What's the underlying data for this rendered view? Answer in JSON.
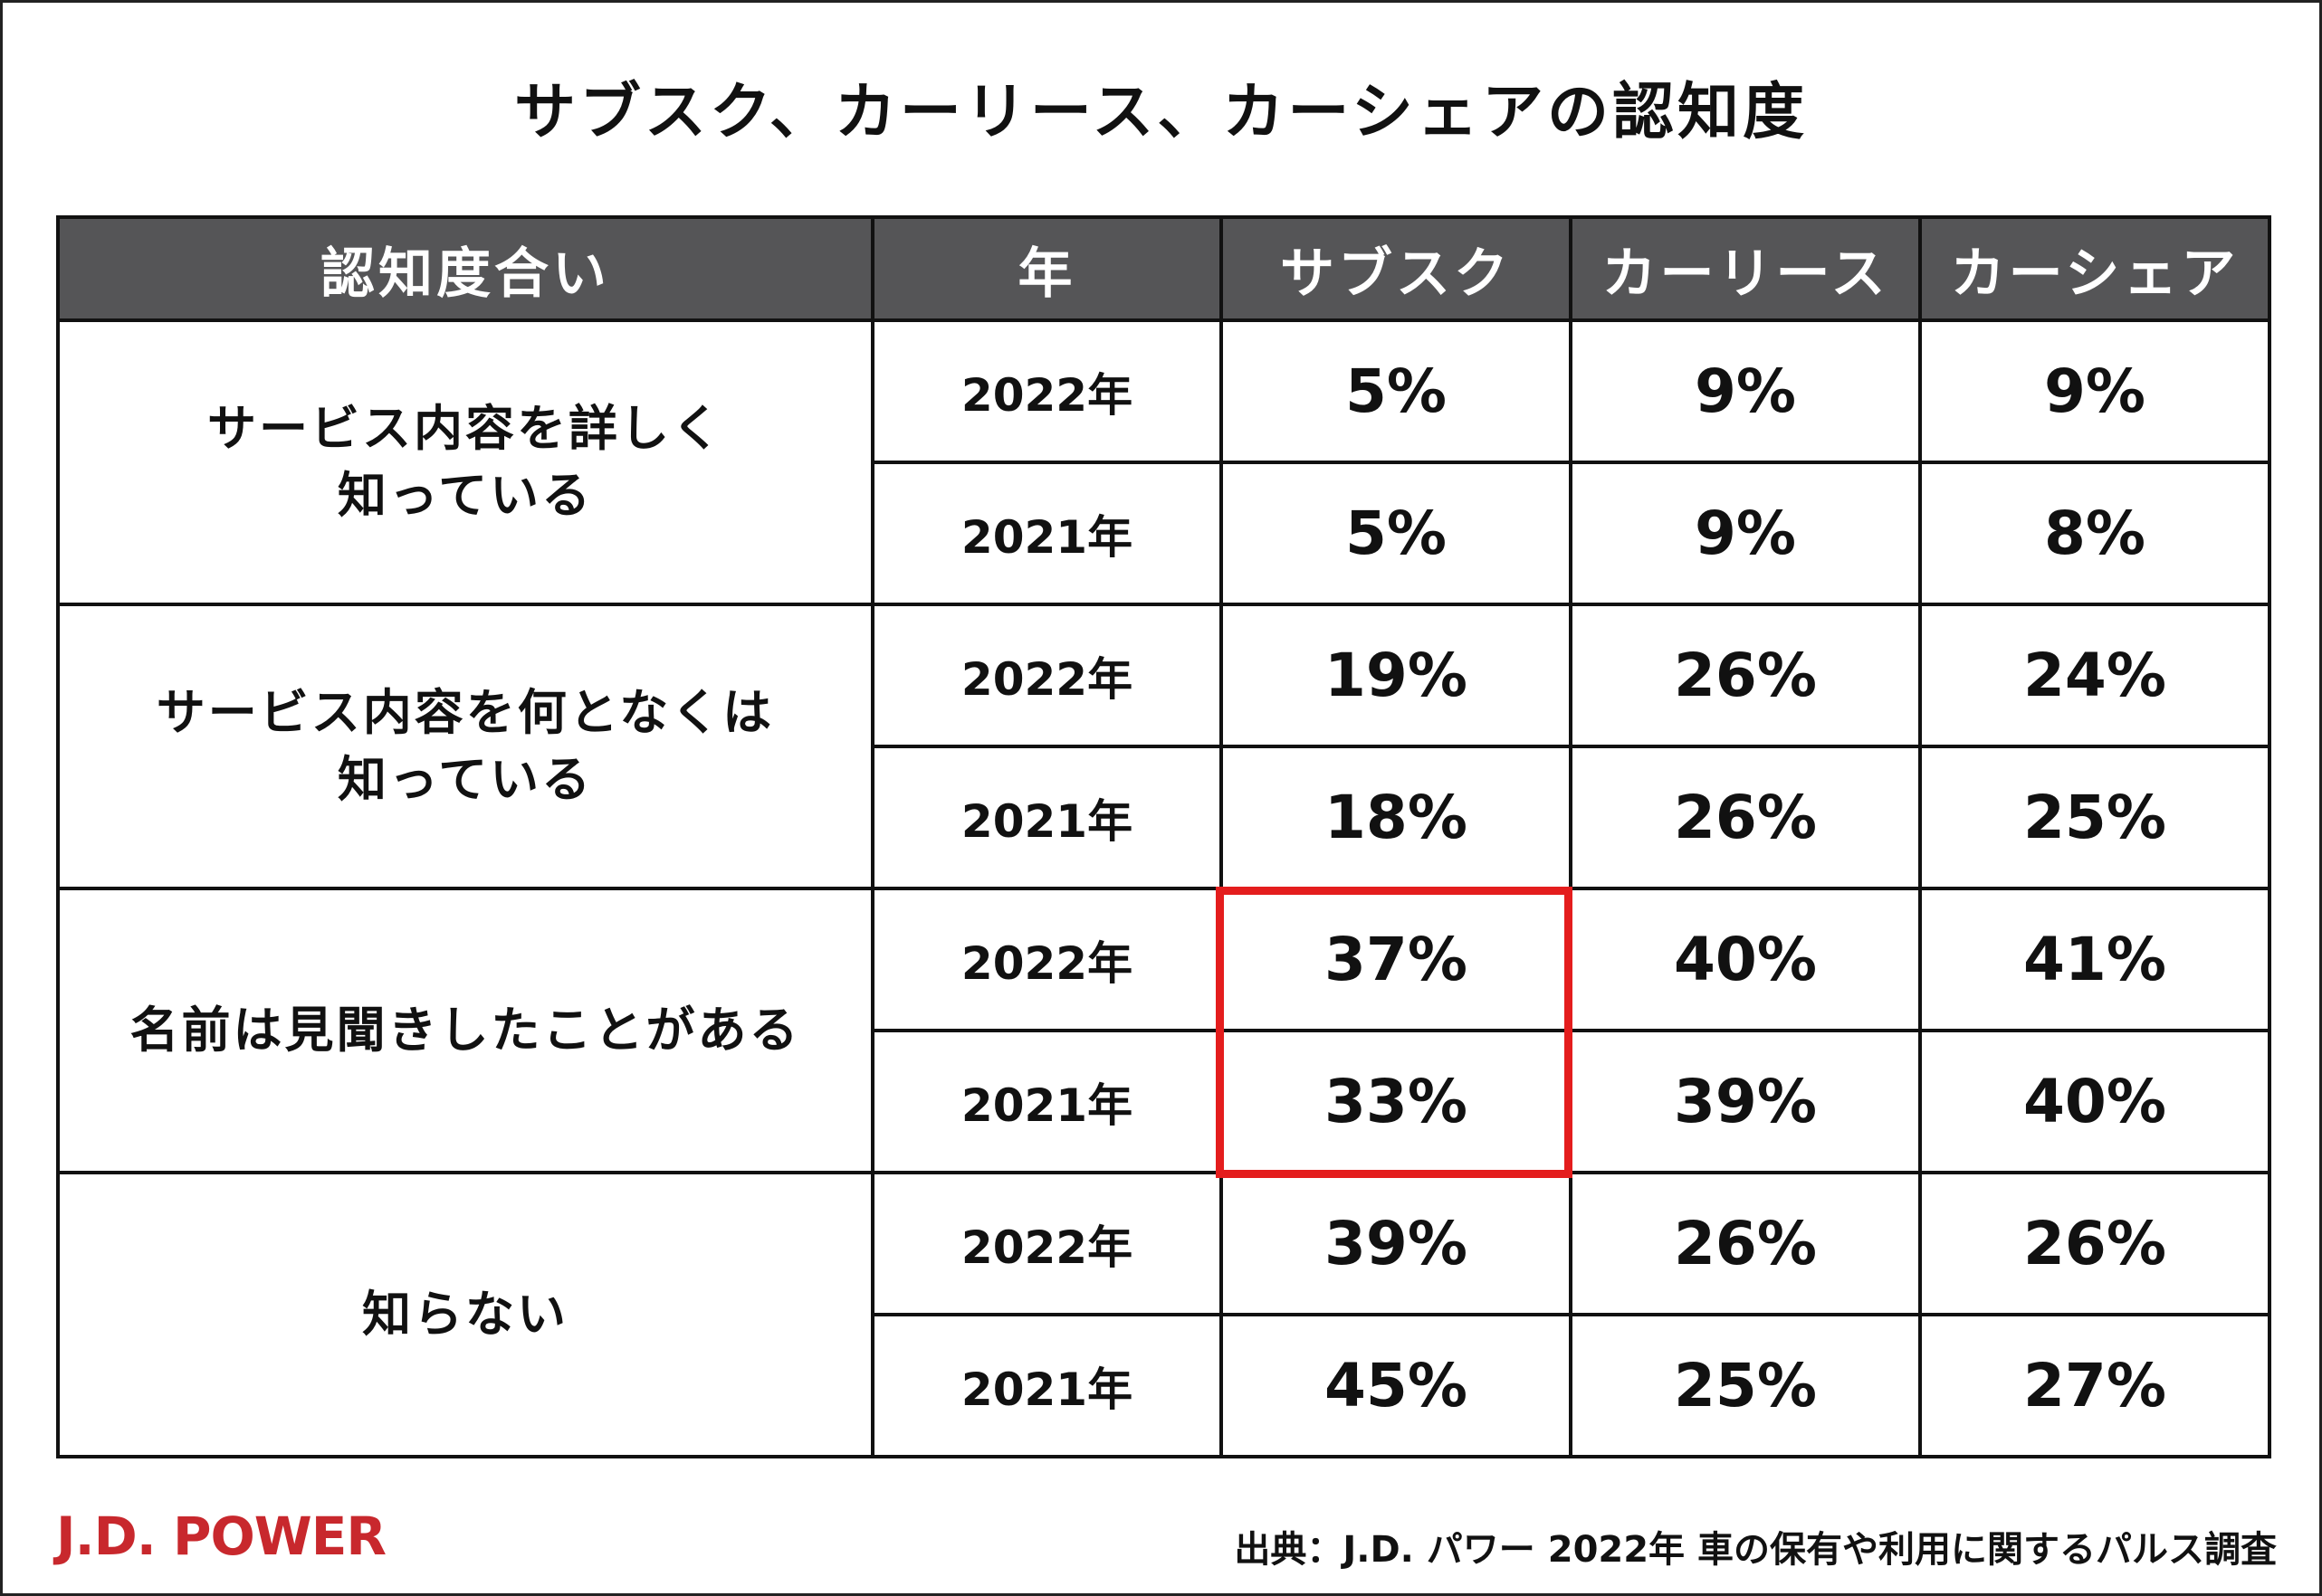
{
  "title": "サブスク、カーリース、カーシェアの認知度",
  "headers": {
    "category": "認知度合い",
    "year": "年",
    "subsc": "サブスク",
    "lease": "カーリース",
    "share": "カーシェア"
  },
  "rows": [
    {
      "category_line1": "サービス内容を詳しく",
      "category_line2": "知っている",
      "entries": [
        {
          "year": "2022年",
          "subsc": "5%",
          "lease": "9%",
          "share": "9%"
        },
        {
          "year": "2021年",
          "subsc": "5%",
          "lease": "9%",
          "share": "8%"
        }
      ]
    },
    {
      "category_line1": "サービス内容を何となくは",
      "category_line2": "知っている",
      "entries": [
        {
          "year": "2022年",
          "subsc": "19%",
          "lease": "26%",
          "share": "24%"
        },
        {
          "year": "2021年",
          "subsc": "18%",
          "lease": "26%",
          "share": "25%"
        }
      ]
    },
    {
      "category_line1": "名前は見聞きしたことがある",
      "category_line2": "",
      "entries": [
        {
          "year": "2022年",
          "subsc": "37%",
          "lease": "40%",
          "share": "41%"
        },
        {
          "year": "2021年",
          "subsc": "33%",
          "lease": "39%",
          "share": "40%"
        }
      ]
    },
    {
      "category_line1": "知らない",
      "category_line2": "",
      "entries": [
        {
          "year": "2022年",
          "subsc": "39%",
          "lease": "26%",
          "share": "26%"
        },
        {
          "year": "2021年",
          "subsc": "45%",
          "lease": "25%",
          "share": "27%"
        }
      ]
    }
  ],
  "logo": {
    "text": "J.D. POWER",
    "color": "#c8282d"
  },
  "source": "出典：J.D. パワー 2022年 車の保有や利用に関するパルス調査",
  "colors": {
    "header_bg": "#555557",
    "header_text": "#ffffff",
    "highlight_border": "#e41d1d"
  },
  "chart_data": {
    "type": "table",
    "title": "サブスク、カーリース、カーシェアの認知度",
    "columns": [
      "認知度合い",
      "年",
      "サブスク",
      "カーリース",
      "カーシェア"
    ],
    "rows": [
      [
        "サービス内容を詳しく知っている",
        "2022年",
        5,
        9,
        9
      ],
      [
        "サービス内容を詳しく知っている",
        "2021年",
        5,
        9,
        8
      ],
      [
        "サービス内容を何となくは知っている",
        "2022年",
        19,
        26,
        24
      ],
      [
        "サービス内容を何となくは知っている",
        "2021年",
        18,
        26,
        25
      ],
      [
        "名前は見聞きしたことがある",
        "2022年",
        37,
        40,
        41
      ],
      [
        "名前は見聞きしたことがある",
        "2021年",
        33,
        39,
        40
      ],
      [
        "知らない",
        "2022年",
        39,
        26,
        26
      ],
      [
        "知らない",
        "2021年",
        45,
        25,
        27
      ]
    ],
    "unit": "%",
    "highlighted": {
      "column": "サブスク",
      "category": "名前は見聞きしたことがある"
    }
  }
}
